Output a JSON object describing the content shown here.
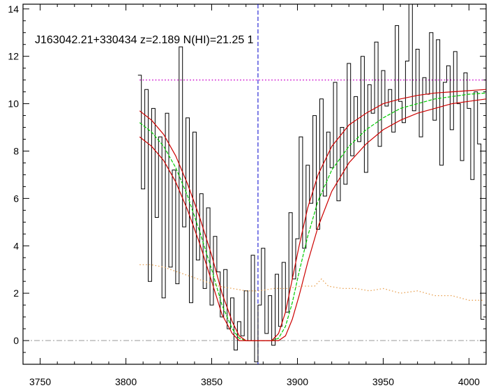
{
  "chart_data": {
    "type": "line",
    "title": "J163042.21+330434 z=2.189 N(HI)=21.25 1",
    "xlabel": "",
    "ylabel": "",
    "xlim": [
      3740,
      4010
    ],
    "ylim": [
      -1,
      14.2
    ],
    "x_ticks": [
      3750,
      3800,
      3850,
      3900,
      3950,
      4000
    ],
    "x_tick_labels": [
      "3750",
      "3800",
      "3850",
      "3900",
      "3950",
      "4000"
    ],
    "y_ticks": [
      0,
      2,
      4,
      6,
      8,
      10,
      12,
      14
    ],
    "y_tick_labels": [
      "0",
      "2",
      "4",
      "6",
      "8",
      "10",
      "12",
      "14"
    ],
    "grid": false,
    "reference_lines": {
      "zero_level": 0,
      "continuum_level": 11.0,
      "absorption_center": 3877
    },
    "colors": {
      "flux": "#000000",
      "model": "#00cc00",
      "model_bounds": "#cc0000",
      "continuum": "#cc00cc",
      "error": "#e8a050",
      "center_line": "#0000cc",
      "zero_line": "#999999"
    },
    "series": [
      {
        "key": "flux",
        "x": [
          3808,
          3810,
          3812,
          3814,
          3816,
          3818,
          3820,
          3822,
          3824,
          3826,
          3828,
          3830,
          3832,
          3834,
          3836,
          3838,
          3840,
          3842,
          3844,
          3846,
          3848,
          3850,
          3852,
          3854,
          3856,
          3858,
          3860,
          3862,
          3864,
          3866,
          3868,
          3870,
          3872,
          3874,
          3876,
          3878,
          3880,
          3882,
          3884,
          3886,
          3888,
          3890,
          3892,
          3894,
          3896,
          3898,
          3900,
          3902,
          3904,
          3906,
          3908,
          3910,
          3912,
          3914,
          3916,
          3918,
          3920,
          3922,
          3924,
          3926,
          3928,
          3930,
          3932,
          3934,
          3936,
          3938,
          3940,
          3942,
          3944,
          3946,
          3948,
          3950,
          3952,
          3954,
          3956,
          3958,
          3960,
          3962,
          3964,
          3966,
          3968,
          3970,
          3972,
          3974,
          3976,
          3978,
          3980,
          3982,
          3984,
          3986,
          3988,
          3990,
          3992,
          3994,
          3996,
          3998,
          4000,
          4002,
          4004,
          4006,
          4008
        ],
        "y": [
          11.2,
          6.4,
          10.6,
          2.5,
          9.8,
          5.2,
          8.6,
          1.8,
          9.6,
          3.1,
          7.2,
          2.4,
          12.4,
          4.8,
          9.4,
          1.6,
          8.8,
          3.4,
          6.2,
          2.2,
          5.6,
          1.5,
          4.4,
          2.9,
          1.0,
          3.0,
          0.5,
          1.8,
          -0.4,
          0.8,
          0.2,
          2.1,
          0.0,
          3.6,
          -0.9,
          1.5,
          3.9,
          0.3,
          1.9,
          -0.2,
          2.8,
          0.6,
          3.3,
          1.2,
          5.4,
          2.6,
          4.3,
          8.6,
          3.9,
          7.4,
          5.8,
          9.5,
          4.7,
          10.2,
          6.1,
          8.8,
          7.3,
          10.9,
          5.9,
          9.0,
          6.6,
          11.7,
          7.8,
          10.3,
          8.4,
          12.0,
          7.1,
          10.8,
          9.6,
          12.6,
          8.2,
          11.4,
          9.9,
          10.6,
          8.8,
          13.3,
          10.1,
          9.2,
          11.8,
          14.2,
          9.7,
          12.3,
          8.6,
          11.1,
          10.4,
          13.0,
          9.3,
          12.7,
          7.4,
          10.9,
          11.6,
          8.9,
          12.2,
          10.0,
          7.6,
          11.3,
          9.8,
          6.8,
          10.5,
          8.3,
          0.9
        ]
      },
      {
        "key": "model",
        "x": [
          3808,
          3815,
          3822,
          3829,
          3836,
          3843,
          3850,
          3856,
          3862,
          3866,
          3870,
          3875,
          3880,
          3885,
          3889,
          3893,
          3897,
          3901,
          3906,
          3912,
          3920,
          3930,
          3940,
          3950,
          3960,
          3970,
          3980,
          3990,
          4000,
          4010
        ],
        "y": [
          9.2,
          8.8,
          8.2,
          7.3,
          6.1,
          4.6,
          3.0,
          1.5,
          0.5,
          0.1,
          0.0,
          0.0,
          0.0,
          0.0,
          0.1,
          0.6,
          1.6,
          2.9,
          4.4,
          5.9,
          7.2,
          8.2,
          8.9,
          9.4,
          9.8,
          10.0,
          10.2,
          10.3,
          10.4,
          10.45
        ]
      },
      {
        "key": "model_upper",
        "x": [
          3808,
          3815,
          3822,
          3829,
          3836,
          3843,
          3850,
          3856,
          3862,
          3866,
          3870,
          3875,
          3880,
          3885,
          3889,
          3893,
          3897,
          3901,
          3906,
          3912,
          3920,
          3930,
          3940,
          3950,
          3960,
          3970,
          3980,
          3990,
          4000,
          4010
        ],
        "y": [
          9.7,
          9.3,
          8.7,
          7.8,
          6.6,
          5.2,
          3.6,
          2.0,
          0.8,
          0.2,
          0.0,
          0.0,
          0.0,
          0.0,
          0.3,
          1.2,
          2.6,
          4.0,
          5.6,
          7.0,
          8.2,
          9.1,
          9.6,
          10.0,
          10.2,
          10.35,
          10.45,
          10.5,
          10.55,
          10.6
        ]
      },
      {
        "key": "model_lower",
        "x": [
          3808,
          3815,
          3822,
          3829,
          3836,
          3843,
          3850,
          3856,
          3862,
          3866,
          3870,
          3875,
          3880,
          3885,
          3889,
          3893,
          3897,
          3901,
          3906,
          3912,
          3920,
          3930,
          3940,
          3950,
          3960,
          3970,
          3980,
          3990,
          4000,
          4010
        ],
        "y": [
          8.6,
          8.2,
          7.6,
          6.7,
          5.5,
          4.1,
          2.5,
          1.1,
          0.3,
          0.0,
          0.0,
          0.0,
          0.0,
          0.0,
          0.0,
          0.2,
          0.9,
          1.9,
          3.3,
          4.8,
          6.3,
          7.5,
          8.3,
          8.9,
          9.3,
          9.6,
          9.8,
          10.0,
          10.1,
          10.2
        ]
      },
      {
        "key": "error",
        "x": [
          3808,
          3815,
          3822,
          3830,
          3838,
          3846,
          3854,
          3862,
          3870,
          3878,
          3886,
          3894,
          3902,
          3910,
          3914,
          3918,
          3926,
          3934,
          3942,
          3950,
          3960,
          3970,
          3980,
          3990,
          4000,
          4008
        ],
        "y": [
          3.2,
          3.2,
          3.1,
          2.9,
          2.7,
          2.5,
          2.3,
          2.2,
          2.1,
          2.1,
          2.2,
          2.2,
          2.3,
          2.3,
          2.6,
          2.3,
          2.2,
          2.2,
          2.1,
          2.2,
          2.0,
          2.1,
          1.9,
          1.9,
          1.7,
          1.7
        ]
      }
    ]
  }
}
